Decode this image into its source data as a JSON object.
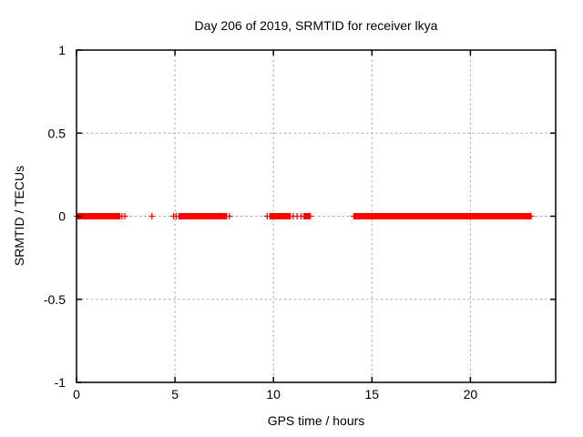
{
  "figure": {
    "background": "#ffffff"
  },
  "chart_data": {
    "type": "scatter",
    "title": "Day 206 of 2019, SRMTID for receiver lkya",
    "xlabel": "GPS time / hours",
    "ylabel": "SRMTID / TECUs",
    "xlim": [
      0,
      24.33
    ],
    "ylim": [
      -1,
      1
    ],
    "xticks": [
      0,
      5,
      10,
      15,
      20
    ],
    "yticks": [
      -1,
      -0.5,
      0,
      0.5,
      1
    ],
    "grid": true,
    "legend_visible": false,
    "marker": "plus",
    "marker_size_px": 7,
    "marker_color": "#ff0000",
    "grid_color": "#a9a9a9",
    "axis_color": "#000000",
    "series": [
      {
        "name": "SRMTID",
        "y_value": 0,
        "note": "All points lie on y = 0 TECUs; dense segments render as solid red bands of overlapping plus markers",
        "dense_segments_hours": [
          [
            0.03,
            2.2
          ],
          [
            5.2,
            7.62
          ],
          [
            9.82,
            10.85
          ],
          [
            11.55,
            11.87
          ],
          [
            14.08,
            23.03
          ]
        ],
        "sparse_points_hours": [
          2.31,
          2.45,
          3.83,
          4.93,
          5.06,
          7.76,
          9.68,
          11.0,
          11.2,
          11.4,
          23.08
        ]
      }
    ]
  }
}
